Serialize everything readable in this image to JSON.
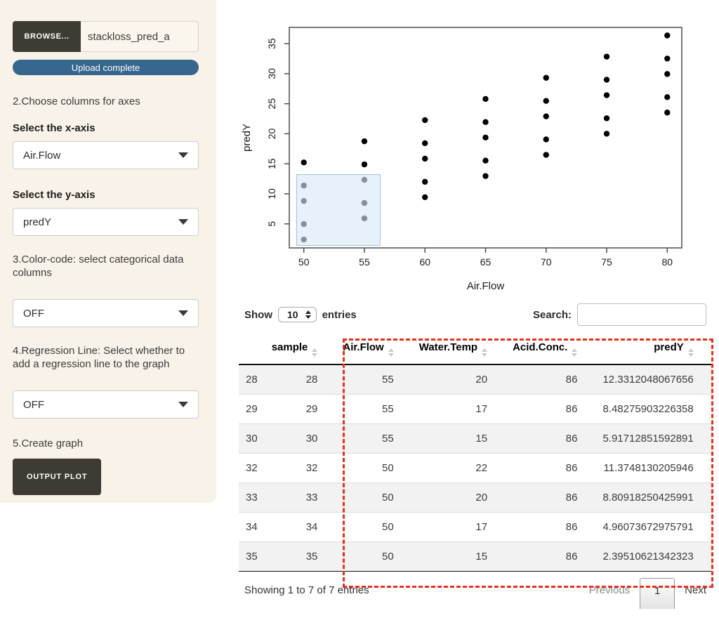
{
  "sidebar": {
    "browse_label": "BROWSE...",
    "file_name": "stackloss_pred_a",
    "upload_status": "Upload complete",
    "step2_label": "2.Choose columns for axes",
    "xaxis_label": "Select the x-axis",
    "xaxis_value": "Air.Flow",
    "yaxis_label": "Select the y-axis",
    "yaxis_value": "predY",
    "step3_label": "3.Color-code: select categorical data columns",
    "color_value": "OFF",
    "step4_label": "4.Regression Line: Select whether to add a regression line to the graph",
    "regression_value": "OFF",
    "step5_label": "5.Create graph",
    "output_button": "OUTPUT PLOT"
  },
  "colors": {
    "sidebar_bg": "#f8f2e9",
    "dark_button": "#3d3b33",
    "progress_blue": "#35678f",
    "annotation_red": "#e8301d",
    "brush_fill": "#d9e9f8",
    "brush_stroke": "#9dbedc",
    "point_color": "#000000"
  },
  "chart_data": {
    "type": "scatter",
    "title": "",
    "xlabel": "Air.Flow",
    "ylabel": "predY",
    "x_ticks": [
      50,
      55,
      60,
      65,
      70,
      75,
      80
    ],
    "y_ticks": [
      5,
      10,
      15,
      20,
      25,
      30,
      35
    ],
    "xlim": [
      48.8,
      81.2
    ],
    "ylim": [
      1.0,
      37.7
    ],
    "grid": false,
    "legend": null,
    "points": [
      [
        50,
        2.3951
      ],
      [
        50,
        4.9607
      ],
      [
        50,
        8.8092
      ],
      [
        50,
        11.3748
      ],
      [
        50,
        15.2233
      ],
      [
        55,
        5.9171
      ],
      [
        55,
        8.4828
      ],
      [
        55,
        12.3312
      ],
      [
        55,
        14.8968
      ],
      [
        55,
        18.7453
      ],
      [
        60,
        9.4391
      ],
      [
        60,
        12.0048
      ],
      [
        60,
        15.8532
      ],
      [
        60,
        18.4188
      ],
      [
        60,
        22.2674
      ],
      [
        65,
        12.9612
      ],
      [
        65,
        15.5268
      ],
      [
        65,
        19.3752
      ],
      [
        65,
        21.9409
      ],
      [
        65,
        25.7894
      ],
      [
        70,
        16.4832
      ],
      [
        70,
        19.0488
      ],
      [
        70,
        22.8973
      ],
      [
        70,
        25.4629
      ],
      [
        70,
        29.3114
      ],
      [
        75,
        20.0052
      ],
      [
        75,
        22.5708
      ],
      [
        75,
        26.4193
      ],
      [
        75,
        28.9849
      ],
      [
        75,
        32.8334
      ],
      [
        80,
        23.5272
      ],
      [
        80,
        26.0929
      ],
      [
        80,
        29.9413
      ],
      [
        80,
        32.5069
      ],
      [
        80,
        36.3554
      ]
    ],
    "brush_selection": {
      "x0": 49.4,
      "x1": 56.3,
      "y0": 1.4,
      "y1": 13.2
    }
  },
  "table": {
    "show_label": "Show",
    "page_size": "10",
    "entries_label": "entries",
    "search_label": "Search:",
    "search_value": "",
    "columns": [
      "",
      "sample",
      "Air.Flow",
      "Water.Temp",
      "Acid.Conc.",
      "predY"
    ],
    "rows": [
      [
        "28",
        "28",
        "55",
        "20",
        "86",
        "12.3312048067656"
      ],
      [
        "29",
        "29",
        "55",
        "17",
        "86",
        "8.48275903226358"
      ],
      [
        "30",
        "30",
        "55",
        "15",
        "86",
        "5.91712851592891"
      ],
      [
        "32",
        "32",
        "50",
        "22",
        "86",
        "11.3748130205946"
      ],
      [
        "33",
        "33",
        "50",
        "20",
        "86",
        "8.80918250425991"
      ],
      [
        "34",
        "34",
        "50",
        "17",
        "86",
        "4.96073672975791"
      ],
      [
        "35",
        "35",
        "50",
        "15",
        "86",
        "2.39510621342323"
      ]
    ],
    "info": "Showing 1 to 7 of 7 entries",
    "prev_label": "Previous",
    "current_page": "1",
    "next_label": "Next"
  }
}
